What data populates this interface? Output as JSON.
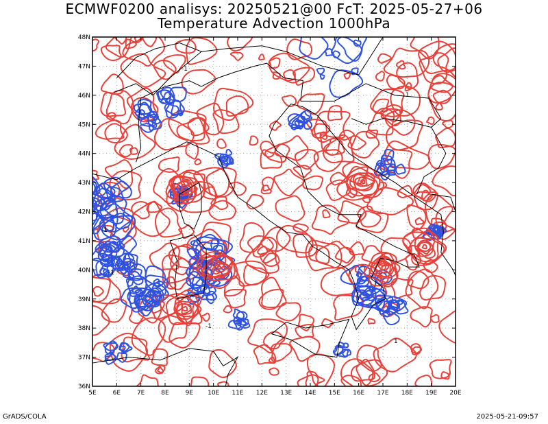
{
  "title_line1": "ECMWF0200 analisys: 20250521@00 FcT: 2025-05-27+06",
  "title_line2": "Temperature Advection 1000hPa",
  "footer_left": "GrADS/COLA",
  "footer_right": "2025-05-21-09:57",
  "map": {
    "lon_range": [
      5,
      20
    ],
    "lat_range": [
      36,
      48
    ],
    "lon_labels": [
      "5E",
      "6E",
      "7E",
      "8E",
      "9E",
      "10E",
      "11E",
      "12E",
      "13E",
      "14E",
      "15E",
      "16E",
      "17E",
      "18E",
      "19E",
      "20E"
    ],
    "lat_labels": [
      "36N",
      "37N",
      "38N",
      "39N",
      "40N",
      "41N",
      "42N",
      "43N",
      "44N",
      "45N",
      "46N",
      "47N",
      "48N"
    ],
    "grid": "dotted",
    "contour_colors": {
      "positive": "#e8413a",
      "negative": "#2f52e0"
    },
    "coastline_color": "#000000",
    "contour_labels": [
      "-1",
      "1"
    ]
  }
}
